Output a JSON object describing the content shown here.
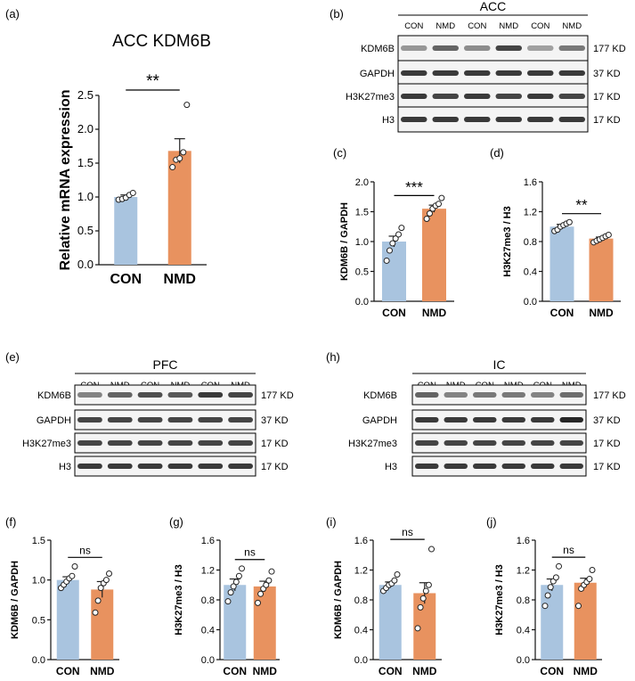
{
  "colors": {
    "con": "#a9c4df",
    "nmd": "#e8925f",
    "axis": "#111111",
    "blot_bg": "#f4f4f4",
    "band": "#262626"
  },
  "panel_labels": {
    "a": "(a)",
    "b": "(b)",
    "c": "(c)",
    "d": "(d)",
    "e": "(e)",
    "f": "(f)",
    "g": "(g)",
    "h": "(h)",
    "i": "(i)",
    "j": "(j)"
  },
  "blots": {
    "b": {
      "region": "ACC",
      "lanes": [
        "CON",
        "NMD",
        "CON",
        "NMD",
        "CON",
        "NMD"
      ],
      "rows": [
        {
          "label": "KDM6B",
          "size": "177 KD",
          "intensity": [
            0.45,
            0.7,
            0.5,
            0.85,
            0.4,
            0.6
          ]
        },
        {
          "label": "GAPDH",
          "size": "37 KD",
          "intensity": [
            0.9,
            0.9,
            0.9,
            0.9,
            0.9,
            0.9
          ]
        },
        {
          "label": "H3K27me3",
          "size": "17 KD",
          "intensity": [
            0.9,
            0.85,
            0.9,
            0.85,
            0.9,
            0.85
          ]
        },
        {
          "label": "H3",
          "size": "17 KD",
          "intensity": [
            0.9,
            0.9,
            0.9,
            0.9,
            0.9,
            0.9
          ]
        }
      ]
    },
    "e": {
      "region": "PFC",
      "lanes": [
        "CON",
        "NMD",
        "CON",
        "NMD",
        "CON",
        "NMD"
      ],
      "rows": [
        {
          "label": "KDM6B",
          "size": "177 KD",
          "intensity": [
            0.55,
            0.7,
            0.8,
            0.75,
            0.9,
            0.85
          ]
        },
        {
          "label": "GAPDH",
          "size": "37 KD",
          "intensity": [
            0.85,
            0.85,
            0.85,
            0.85,
            0.85,
            0.85
          ]
        },
        {
          "label": "H3K27me3",
          "size": "17 KD",
          "intensity": [
            0.85,
            0.85,
            0.85,
            0.85,
            0.85,
            0.85
          ]
        },
        {
          "label": "H3",
          "size": "17 KD",
          "intensity": [
            0.9,
            0.9,
            0.9,
            0.9,
            0.9,
            0.9
          ]
        }
      ]
    },
    "h": {
      "region": "IC",
      "lanes": [
        "CON",
        "NMD",
        "CON",
        "NMD",
        "CON",
        "NMD"
      ],
      "rows": [
        {
          "label": "KDM6B",
          "size": "177 KD",
          "intensity": [
            0.7,
            0.55,
            0.6,
            0.6,
            0.55,
            0.65
          ]
        },
        {
          "label": "GAPDH",
          "size": "37 KD",
          "intensity": [
            0.9,
            0.9,
            0.9,
            0.9,
            0.9,
            1.0
          ]
        },
        {
          "label": "H3K27me3",
          "size": "17 KD",
          "intensity": [
            0.85,
            0.85,
            0.85,
            0.85,
            0.85,
            0.85
          ]
        },
        {
          "label": "H3",
          "size": "17 KD",
          "intensity": [
            0.9,
            0.9,
            0.9,
            0.9,
            0.9,
            0.9
          ]
        }
      ]
    }
  },
  "chart_data": [
    {
      "id": "a",
      "type": "bar",
      "title": "ACC KDM6B",
      "ylabel": "Relative mRNA expression",
      "xlabel": "",
      "categories": [
        "CON",
        "NMD"
      ],
      "values": [
        1.0,
        1.68
      ],
      "errors": [
        0.03,
        0.18
      ],
      "points": [
        [
          0.96,
          0.97,
          0.99,
          1.03,
          1.06
        ],
        [
          1.44,
          1.55,
          1.57,
          1.66,
          2.36
        ]
      ],
      "ylim": [
        0,
        2.5
      ],
      "ticks": [
        0.0,
        0.5,
        1.0,
        1.5,
        2.0,
        2.5
      ],
      "tick_labels": [
        "0.0",
        "0.5",
        "1.0",
        "1.5",
        "2.0",
        "2.5"
      ],
      "sig": "**"
    },
    {
      "id": "c",
      "type": "bar",
      "title": "",
      "ylabel": "KDM6B / GAPDH",
      "xlabel": "",
      "categories": [
        "CON",
        "NMD"
      ],
      "values": [
        1.0,
        1.55
      ],
      "errors": [
        0.09,
        0.06
      ],
      "points": [
        [
          0.68,
          0.85,
          0.97,
          1.05,
          1.12,
          1.23
        ],
        [
          1.38,
          1.47,
          1.55,
          1.6,
          1.63,
          1.73
        ]
      ],
      "ylim": [
        0,
        2.0
      ],
      "ticks": [
        0.0,
        0.5,
        1.0,
        1.5,
        2.0
      ],
      "tick_labels": [
        "0.0",
        "0.5",
        "1.0",
        "1.5",
        "2.0"
      ],
      "sig": "***"
    },
    {
      "id": "d",
      "type": "bar",
      "title": "",
      "ylabel": "H3K27me3 / H3",
      "xlabel": "",
      "categories": [
        "CON",
        "NMD"
      ],
      "values": [
        1.0,
        0.84
      ],
      "errors": [
        0.03,
        0.02
      ],
      "points": [
        [
          0.94,
          0.96,
          1.0,
          1.02,
          1.04,
          1.06
        ],
        [
          0.79,
          0.81,
          0.83,
          0.85,
          0.87,
          0.89
        ]
      ],
      "ylim": [
        0,
        1.6
      ],
      "ticks": [
        0.0,
        0.4,
        0.8,
        1.2,
        1.6
      ],
      "tick_labels": [
        "0.0",
        "0.4",
        "0.8",
        "1.2",
        "1.6"
      ],
      "sig": "**"
    },
    {
      "id": "f",
      "type": "bar",
      "title": "",
      "ylabel": "KDM6B / GAPDH",
      "xlabel": "",
      "categories": [
        "CON",
        "NMD"
      ],
      "values": [
        1.0,
        0.88
      ],
      "errors": [
        0.04,
        0.1
      ],
      "points": [
        [
          0.9,
          0.94,
          0.98,
          1.02,
          1.05,
          1.17
        ],
        [
          0.59,
          0.74,
          0.9,
          0.96,
          1.0,
          1.08
        ]
      ],
      "ylim": [
        0,
        1.5
      ],
      "ticks": [
        0.0,
        0.5,
        1.0,
        1.5
      ],
      "tick_labels": [
        "0.0",
        "0.5",
        "1.0",
        "1.5"
      ],
      "sig": "ns"
    },
    {
      "id": "g",
      "type": "bar",
      "title": "",
      "ylabel": "H3K27me3 / H3",
      "xlabel": "",
      "categories": [
        "CON",
        "NMD"
      ],
      "values": [
        1.0,
        0.98
      ],
      "errors": [
        0.08,
        0.07
      ],
      "points": [
        [
          0.78,
          0.9,
          0.98,
          1.04,
          1.12,
          1.22
        ],
        [
          0.76,
          0.88,
          0.95,
          1.0,
          1.06,
          1.18
        ]
      ],
      "ylim": [
        0,
        1.6
      ],
      "ticks": [
        0.0,
        0.4,
        0.8,
        1.2,
        1.6
      ],
      "tick_labels": [
        "0.0",
        "0.4",
        "0.8",
        "1.2",
        "1.6"
      ],
      "sig": "ns"
    },
    {
      "id": "i",
      "type": "bar",
      "title": "",
      "ylabel": "KDM6B / GAPDH",
      "xlabel": "",
      "categories": [
        "CON",
        "NMD"
      ],
      "values": [
        1.0,
        0.89
      ],
      "errors": [
        0.04,
        0.14
      ],
      "points": [
        [
          0.92,
          0.96,
          1.0,
          1.02,
          1.06,
          1.14
        ],
        [
          0.42,
          0.7,
          0.82,
          0.92,
          1.0,
          1.48
        ]
      ],
      "ylim": [
        0,
        1.6
      ],
      "ticks": [
        0.0,
        0.4,
        0.8,
        1.2,
        1.6
      ],
      "tick_labels": [
        "0.0",
        "0.4",
        "0.8",
        "1.2",
        "1.6"
      ],
      "sig": "ns"
    },
    {
      "id": "j",
      "type": "bar",
      "title": "",
      "ylabel": "H3K27me3 / H3",
      "xlabel": "",
      "categories": [
        "CON",
        "NMD"
      ],
      "values": [
        1.0,
        1.03
      ],
      "errors": [
        0.08,
        0.06
      ],
      "points": [
        [
          0.72,
          0.86,
          0.97,
          1.05,
          1.1,
          1.25
        ],
        [
          0.72,
          0.95,
          1.0,
          1.04,
          1.08,
          1.2
        ]
      ],
      "ylim": [
        0,
        1.6
      ],
      "ticks": [
        0.0,
        0.4,
        0.8,
        1.2,
        1.6
      ],
      "tick_labels": [
        "0.0",
        "0.4",
        "0.8",
        "1.2",
        "1.6"
      ],
      "sig": "ns"
    }
  ]
}
